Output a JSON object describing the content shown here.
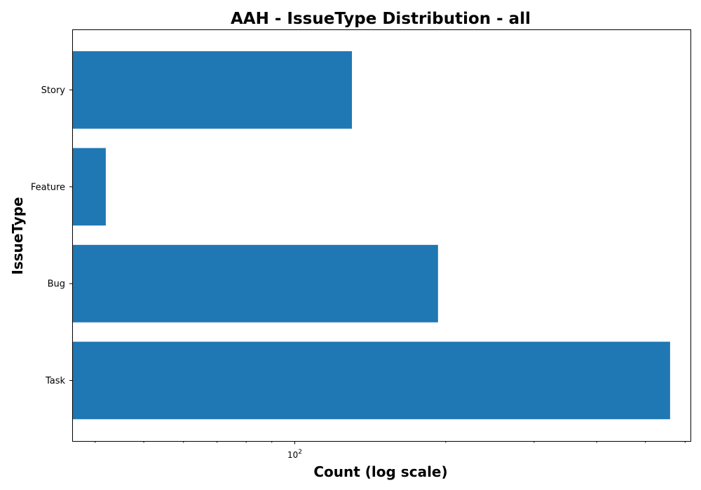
{
  "chart_data": {
    "type": "bar",
    "orientation": "horizontal",
    "title": "AAH - IssueType Distribution - all",
    "xlabel": "Count (log scale)",
    "ylabel": "IssueType",
    "x_scale": "log",
    "xlim": [
      36,
      615
    ],
    "categories": [
      "Task",
      "Bug",
      "Feature",
      "Story"
    ],
    "values": [
      560,
      193,
      42,
      130
    ],
    "bar_color": "#1f77b4",
    "x_major_tick": {
      "value": 100,
      "label_base": "10",
      "label_exp": "2"
    },
    "x_minor_ticks": [
      40,
      50,
      60,
      70,
      80,
      90,
      200,
      300,
      400,
      500,
      600
    ],
    "grid": false,
    "legend": "none"
  }
}
